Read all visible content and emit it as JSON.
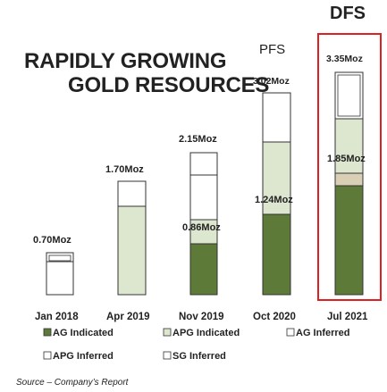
{
  "chart_data": {
    "type": "bar",
    "title_lines": [
      "RAPIDLY GROWING",
      "GOLD RESOURCES"
    ],
    "categories": [
      "Jan 2018",
      "Apr 2019",
      "Nov 2019",
      "Oct 2020",
      "Jul 2021"
    ],
    "totals": [
      "0.70Moz",
      "1.70Moz",
      "2.15Moz",
      "3.02Moz",
      "3.35Moz"
    ],
    "inner_labels": [
      {
        "category": 2,
        "text": "0.86Moz"
      },
      {
        "category": 3,
        "text": "1.24Moz"
      },
      {
        "category": 4,
        "text": "1.85Moz"
      }
    ],
    "milestones": [
      {
        "category": 3,
        "text": "PFS"
      },
      {
        "category": 4,
        "text": "DFS"
      }
    ],
    "series": [
      {
        "name": "AG Indicated",
        "color": "#5e7a38"
      },
      {
        "name": "APG Indicated",
        "color": "#dde6cf"
      },
      {
        "name": "AG Inferred",
        "color": "#ffffff"
      },
      {
        "name": "APG Inferred",
        "color": "#ffffff"
      },
      {
        "name": "SG Inferred",
        "color": "#ffffff"
      }
    ],
    "highlight_color": "#e02020",
    "source": "Source – Company’s Report"
  }
}
